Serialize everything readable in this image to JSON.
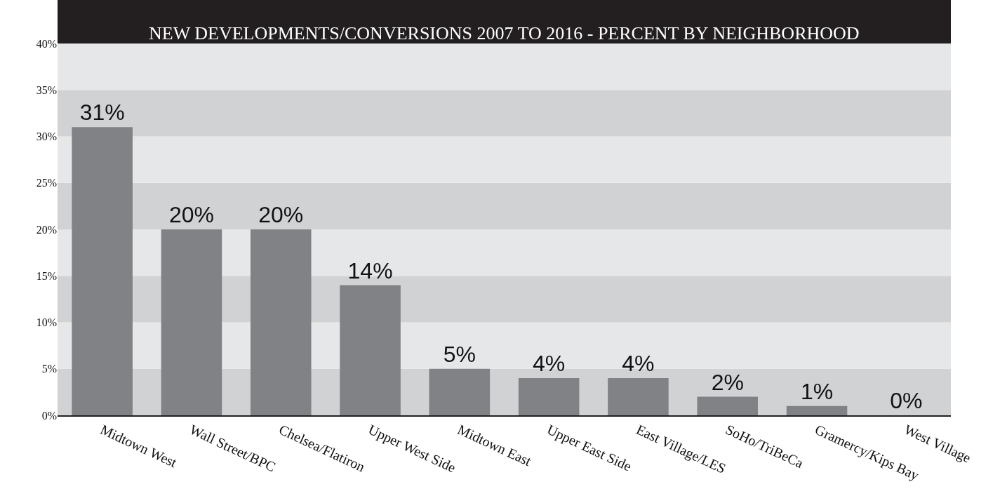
{
  "chart_data": {
    "type": "bar",
    "title": "NEW DEVELOPMENTS/CONVERSIONS 2007 TO 2016 - PERCENT BY NEIGHBORHOOD",
    "categories": [
      "Midtown West",
      "Wall Street/BPC",
      "Chelsea/Flatiron",
      "Upper West Side",
      "Midtown East",
      "Upper East Side",
      "East Village/LES",
      "SoHo/TriBeCa",
      "Gramercy/Kips Bay",
      "West Village"
    ],
    "values": [
      31,
      20,
      20,
      14,
      5,
      4,
      4,
      2,
      1,
      0
    ],
    "value_labels": [
      "31%",
      "20%",
      "20%",
      "14%",
      "5%",
      "4%",
      "4%",
      "2%",
      "1%",
      "0%"
    ],
    "color": "#808285",
    "ylim": [
      0,
      40
    ],
    "yticks": [
      {
        "value": 0,
        "label": "0%"
      },
      {
        "value": 5,
        "label": "5%"
      },
      {
        "value": 10,
        "label": "10%"
      },
      {
        "value": 15,
        "label": "15%"
      },
      {
        "value": 20,
        "label": "20%"
      },
      {
        "value": 25,
        "label": "25%"
      },
      {
        "value": 30,
        "label": "30%"
      },
      {
        "value": 35,
        "label": "35%"
      },
      {
        "value": 40,
        "label": "40%"
      }
    ],
    "bands": [
      {
        "axis": "y",
        "from": 0,
        "to": 5,
        "color": "#d1d2d4"
      },
      {
        "axis": "y",
        "from": 5,
        "to": 10,
        "color": "#e6e7e8"
      },
      {
        "axis": "y",
        "from": 10,
        "to": 15,
        "color": "#d1d2d4"
      },
      {
        "axis": "y",
        "from": 15,
        "to": 20,
        "color": "#e6e7e8"
      },
      {
        "axis": "y",
        "from": 20,
        "to": 25,
        "color": "#d1d2d4"
      },
      {
        "axis": "y",
        "from": 25,
        "to": 30,
        "color": "#e6e7e8"
      },
      {
        "axis": "y",
        "from": 30,
        "to": 35,
        "color": "#d1d2d4"
      },
      {
        "axis": "y",
        "from": 35,
        "to": 40,
        "color": "#e6e7e8"
      }
    ],
    "legend": false
  }
}
